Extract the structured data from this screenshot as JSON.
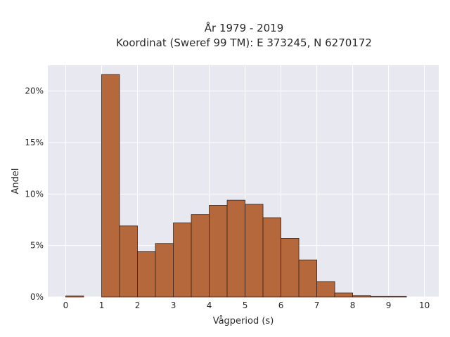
{
  "chart_data": {
    "type": "bar",
    "title_line1": "År 1979 - 2019",
    "title_line2": "Koordinat (Sweref 99 TM): E 373245, N 6270172",
    "xlabel": "Vågperiod (s)",
    "ylabel": "Andel",
    "bin_width": 0.5,
    "bins_start": [
      0,
      1,
      1.5,
      2,
      2.5,
      3,
      3.5,
      4,
      4.5,
      5,
      5.5,
      6,
      6.5,
      7,
      7.5,
      8,
      8.5,
      9,
      9.5
    ],
    "values": [
      0.1,
      21.6,
      6.9,
      4.4,
      5.2,
      7.2,
      8.0,
      8.9,
      9.4,
      9.0,
      7.7,
      5.7,
      3.6,
      1.5,
      0.4,
      0.15,
      0.05,
      0.05,
      0.0
    ],
    "xlim": [
      -0.5,
      10.4
    ],
    "ylim": [
      0,
      22.5
    ],
    "xticks": [
      0,
      1,
      2,
      3,
      4,
      5,
      6,
      7,
      8,
      9,
      10
    ],
    "xtick_labels": [
      "0",
      "1",
      "2",
      "3",
      "4",
      "5",
      "6",
      "7",
      "8",
      "9",
      "10"
    ],
    "yticks": [
      0,
      5,
      10,
      15,
      20
    ],
    "ytick_labels": [
      "0%",
      "5%",
      "10%",
      "15%",
      "20%"
    ],
    "grid": true,
    "colors": {
      "bar_fill": "#b5683b",
      "bar_edge": "#3a2418",
      "plot_bg": "#e8e8f1",
      "grid": "#ffffff"
    }
  }
}
